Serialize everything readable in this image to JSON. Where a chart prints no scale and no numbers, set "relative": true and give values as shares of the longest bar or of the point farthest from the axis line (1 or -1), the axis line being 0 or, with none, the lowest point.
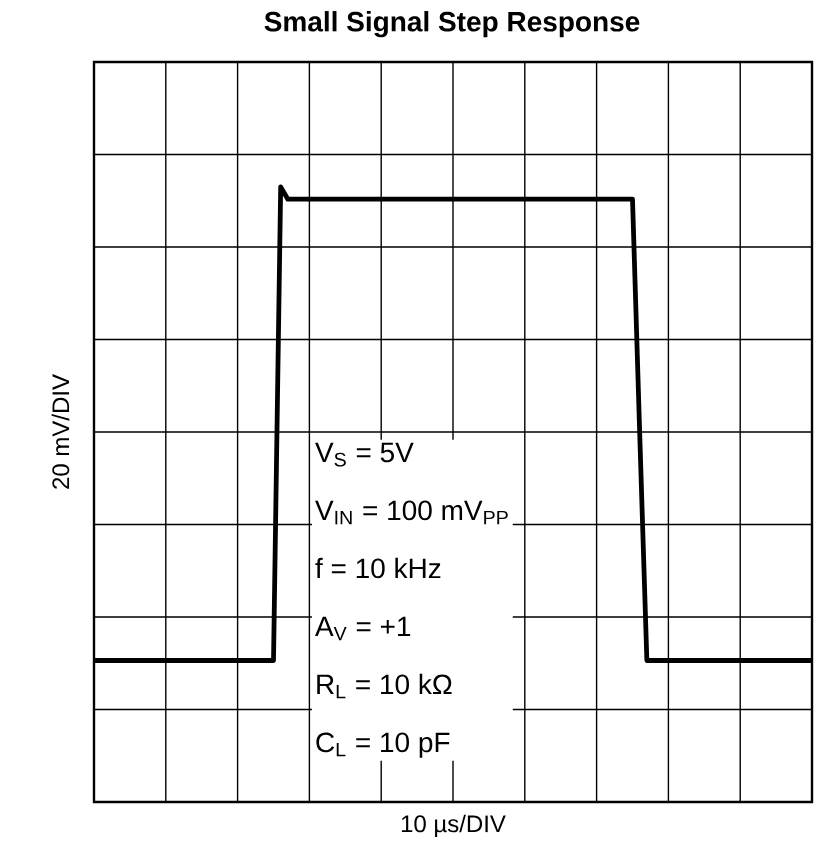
{
  "chart_data": {
    "type": "line",
    "title": "Small Signal Step Response",
    "xlabel": "10 µs/DIV",
    "ylabel": "20 mV/DIV",
    "relative": true,
    "categories": [
      null,
      null,
      null,
      null,
      null,
      null,
      null,
      null,
      null,
      null,
      null,
      null,
      null,
      null,
      null,
      null,
      null,
      null,
      null,
      null,
      null,
      null,
      null,
      null,
      null,
      null,
      null,
      null,
      null,
      null,
      null,
      null,
      null,
      null,
      null,
      null,
      null,
      null,
      null,
      null,
      null,
      null,
      null,
      null,
      null,
      null,
      null,
      null,
      null,
      null,
      null,
      null,
      null,
      null,
      null,
      null,
      null,
      null,
      null,
      null,
      null,
      null,
      null,
      null,
      null,
      null,
      null,
      null,
      null,
      null,
      null,
      null,
      null,
      null,
      null,
      null,
      null,
      null,
      null,
      null,
      null,
      null,
      null,
      null,
      null,
      null,
      null,
      null,
      null,
      null,
      null,
      null,
      null,
      null,
      null,
      null,
      null,
      null,
      null,
      null,
      null
    ],
    "values": [
      0.23,
      0.23,
      0.23,
      0.23,
      0.23,
      0.23,
      0.23,
      0.23,
      0.23,
      0.23,
      0.23,
      0.23,
      0.23,
      0.23,
      0.23,
      0.23,
      0.23,
      0.23,
      0.23,
      0.23,
      0.23,
      0.23,
      0.23,
      0.23,
      0.23,
      0.23,
      1,
      0.98,
      0.98,
      0.98,
      0.98,
      0.98,
      0.98,
      0.98,
      0.98,
      0.98,
      0.98,
      0.98,
      0.98,
      0.98,
      0.98,
      0.98,
      0.98,
      0.98,
      0.98,
      0.98,
      0.98,
      0.98,
      0.98,
      0.98,
      0.98,
      0.98,
      0.98,
      0.98,
      0.98,
      0.98,
      0.98,
      0.98,
      0.98,
      0.98,
      0.98,
      0.98,
      0.98,
      0.98,
      0.98,
      0.98,
      0.98,
      0.98,
      0.98,
      0.98,
      0.98,
      0.98,
      0.98,
      0.98,
      0.98,
      0.98,
      0.6,
      0.23,
      0.23,
      0.23,
      0.23,
      0.23,
      0.23,
      0.23,
      0.23,
      0.23,
      0.23,
      0.23,
      0.23,
      0.23,
      0.23,
      0.23,
      0.23,
      0.23,
      0.23,
      0.23,
      0.23,
      0.23,
      0.23,
      0.23,
      0.23
    ],
    "color": "#000000",
    "grid": true,
    "marker": "none",
    "line_style": "solid",
    "annotations": [
      "V$_{S}$ = 5V",
      "V$_{IN}$ = 100 mV$_{PP}$",
      "f = 10 kHz",
      "A$_{V}$ = +1",
      "R$_{L}$ = 10 kΩ",
      "C$_{L}$ = 10 pF"
    ]
  }
}
